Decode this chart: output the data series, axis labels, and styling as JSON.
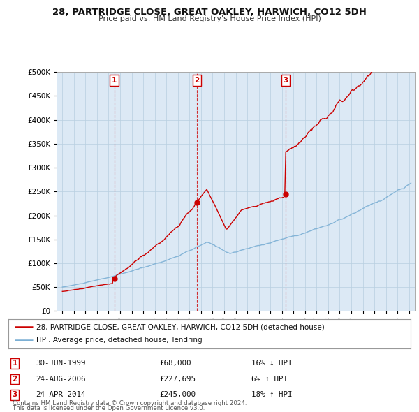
{
  "title": "28, PARTRIDGE CLOSE, GREAT OAKLEY, HARWICH, CO12 5DH",
  "subtitle": "Price paid vs. HM Land Registry's House Price Index (HPI)",
  "transactions": [
    {
      "num": 1,
      "date_str": "30-JUN-1999",
      "price": 68000,
      "year": 1999.49,
      "pct": "16% ↓ HPI"
    },
    {
      "num": 2,
      "date_str": "24-AUG-2006",
      "price": 227695,
      "year": 2006.64,
      "pct": "6% ↑ HPI"
    },
    {
      "num": 3,
      "date_str": "24-APR-2014",
      "price": 245000,
      "year": 2014.32,
      "pct": "18% ↑ HPI"
    }
  ],
  "legend_property": "28, PARTRIDGE CLOSE, GREAT OAKLEY, HARWICH, CO12 5DH (detached house)",
  "legend_hpi": "HPI: Average price, detached house, Tendring",
  "property_color": "#cc0000",
  "hpi_color": "#7bafd4",
  "footer1": "Contains HM Land Registry data © Crown copyright and database right 2024.",
  "footer2": "This data is licensed under the Open Government Licence v3.0.",
  "ylim_max": 500000,
  "xlim_min": 1994.5,
  "xlim_max": 2025.5,
  "chart_bg": "#dce9f5",
  "background_color": "#ffffff",
  "grid_color": "#b8cfe0"
}
